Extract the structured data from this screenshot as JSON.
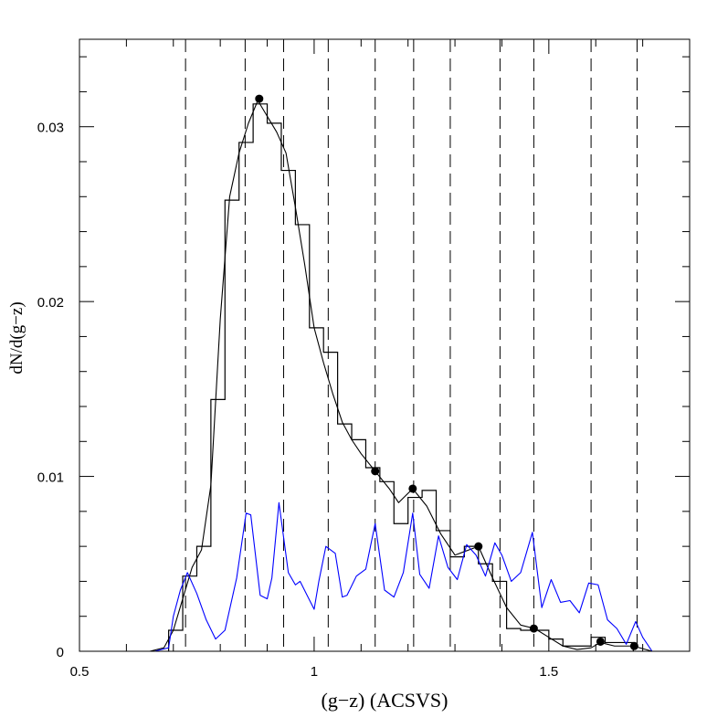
{
  "chart_data": {
    "type": "line",
    "title": "",
    "xlabel": "(g−z)  (ACSVS)",
    "ylabel": "dN/d(g−z)",
    "xlim": [
      0.5,
      1.8
    ],
    "ylim": [
      0,
      0.035
    ],
    "grid": false,
    "x_ticks": [
      0.5,
      1,
      1.5
    ],
    "x_tick_labels": [
      "0.5",
      "1",
      "1.5"
    ],
    "y_ticks": [
      0,
      0.01,
      0.02,
      0.03
    ],
    "y_tick_labels": [
      "0",
      "0.01",
      "0.02",
      "0.03"
    ],
    "dashed_vlines": [
      0.726,
      0.853,
      0.935,
      1.03,
      1.13,
      1.212,
      1.29,
      1.396,
      1.468,
      1.59,
      1.688
    ],
    "peak_points": {
      "x": [
        0.883,
        1.13,
        1.21,
        1.35,
        1.468,
        1.61,
        1.682
      ],
      "y": [
        0.0316,
        0.0103,
        0.0093,
        0.006,
        0.0013,
        0.00055,
        0.0003
      ]
    },
    "histogram": {
      "edges": [
        0.69,
        0.72,
        0.75,
        0.78,
        0.81,
        0.84,
        0.87,
        0.9,
        0.93,
        0.96,
        0.99,
        1.02,
        1.05,
        1.08,
        1.11,
        1.14,
        1.17,
        1.2,
        1.23,
        1.26,
        1.29,
        1.32,
        1.35,
        1.38,
        1.41,
        1.44,
        1.47,
        1.5,
        1.53,
        1.56,
        1.59,
        1.62,
        1.65,
        1.68
      ],
      "values": [
        0.0012,
        0.0043,
        0.006,
        0.0144,
        0.0258,
        0.0291,
        0.0313,
        0.0302,
        0.0275,
        0.0244,
        0.0185,
        0.0171,
        0.013,
        0.0121,
        0.0105,
        0.0097,
        0.0073,
        0.0088,
        0.0092,
        0.0069,
        0.0054,
        0.006,
        0.005,
        0.004,
        0.0013,
        0.0012,
        0.0012,
        0.0007,
        0.0003,
        0.0003,
        0.0008,
        0.0005,
        0.0005
      ]
    },
    "series": [
      {
        "color": "#000000",
        "x": [
          0.5,
          0.65,
          0.68,
          0.7,
          0.72,
          0.74,
          0.76,
          0.78,
          0.8,
          0.82,
          0.84,
          0.86,
          0.88,
          0.9,
          0.92,
          0.94,
          0.96,
          0.98,
          1.0,
          1.02,
          1.04,
          1.06,
          1.08,
          1.1,
          1.13,
          1.16,
          1.18,
          1.21,
          1.24,
          1.27,
          1.3,
          1.33,
          1.35,
          1.38,
          1.41,
          1.44,
          1.47,
          1.5,
          1.53,
          1.56,
          1.59,
          1.61,
          1.64,
          1.66,
          1.68,
          1.72,
          1.8
        ],
        "y": [
          0,
          0,
          0.0002,
          0.0012,
          0.003,
          0.0048,
          0.0058,
          0.0095,
          0.019,
          0.026,
          0.0285,
          0.0302,
          0.0315,
          0.0306,
          0.0297,
          0.0285,
          0.0254,
          0.0221,
          0.0185,
          0.0165,
          0.0147,
          0.0131,
          0.0121,
          0.0113,
          0.0103,
          0.0093,
          0.0085,
          0.0093,
          0.0083,
          0.0067,
          0.0055,
          0.0058,
          0.006,
          0.0042,
          0.0025,
          0.0015,
          0.0013,
          0.0008,
          0.0003,
          0.0001,
          0.0002,
          0.0005,
          0.0003,
          0.0003,
          0.0003,
          0,
          0
        ]
      },
      {
        "color": "#0000ff",
        "x": [
          0.5,
          0.66,
          0.69,
          0.7,
          0.715,
          0.73,
          0.75,
          0.77,
          0.79,
          0.81,
          0.835,
          0.855,
          0.865,
          0.885,
          0.9,
          0.91,
          0.925,
          0.945,
          0.96,
          0.97,
          0.985,
          1.0,
          1.01,
          1.025,
          1.045,
          1.06,
          1.07,
          1.09,
          1.11,
          1.13,
          1.15,
          1.17,
          1.19,
          1.21,
          1.225,
          1.245,
          1.265,
          1.285,
          1.305,
          1.325,
          1.345,
          1.365,
          1.385,
          1.4,
          1.42,
          1.44,
          1.465,
          1.485,
          1.505,
          1.525,
          1.545,
          1.565,
          1.585,
          1.605,
          1.625,
          1.645,
          1.665,
          1.685,
          1.7,
          1.72,
          1.8
        ],
        "y": [
          0,
          0,
          0.0002,
          0.002,
          0.0035,
          0.0045,
          0.0033,
          0.0018,
          0.0007,
          0.0012,
          0.0042,
          0.0079,
          0.0078,
          0.0032,
          0.003,
          0.0042,
          0.0085,
          0.0045,
          0.0038,
          0.004,
          0.0032,
          0.0024,
          0.004,
          0.006,
          0.0056,
          0.0031,
          0.0032,
          0.0043,
          0.0047,
          0.0073,
          0.0035,
          0.0031,
          0.0045,
          0.0079,
          0.0044,
          0.0036,
          0.0066,
          0.0048,
          0.0041,
          0.0061,
          0.0055,
          0.0043,
          0.0062,
          0.0055,
          0.004,
          0.0045,
          0.0068,
          0.0025,
          0.0041,
          0.0028,
          0.0029,
          0.0022,
          0.0039,
          0.0038,
          0.0018,
          0.0013,
          0.0004,
          0.0017,
          0.0008,
          0,
          0
        ]
      }
    ]
  }
}
